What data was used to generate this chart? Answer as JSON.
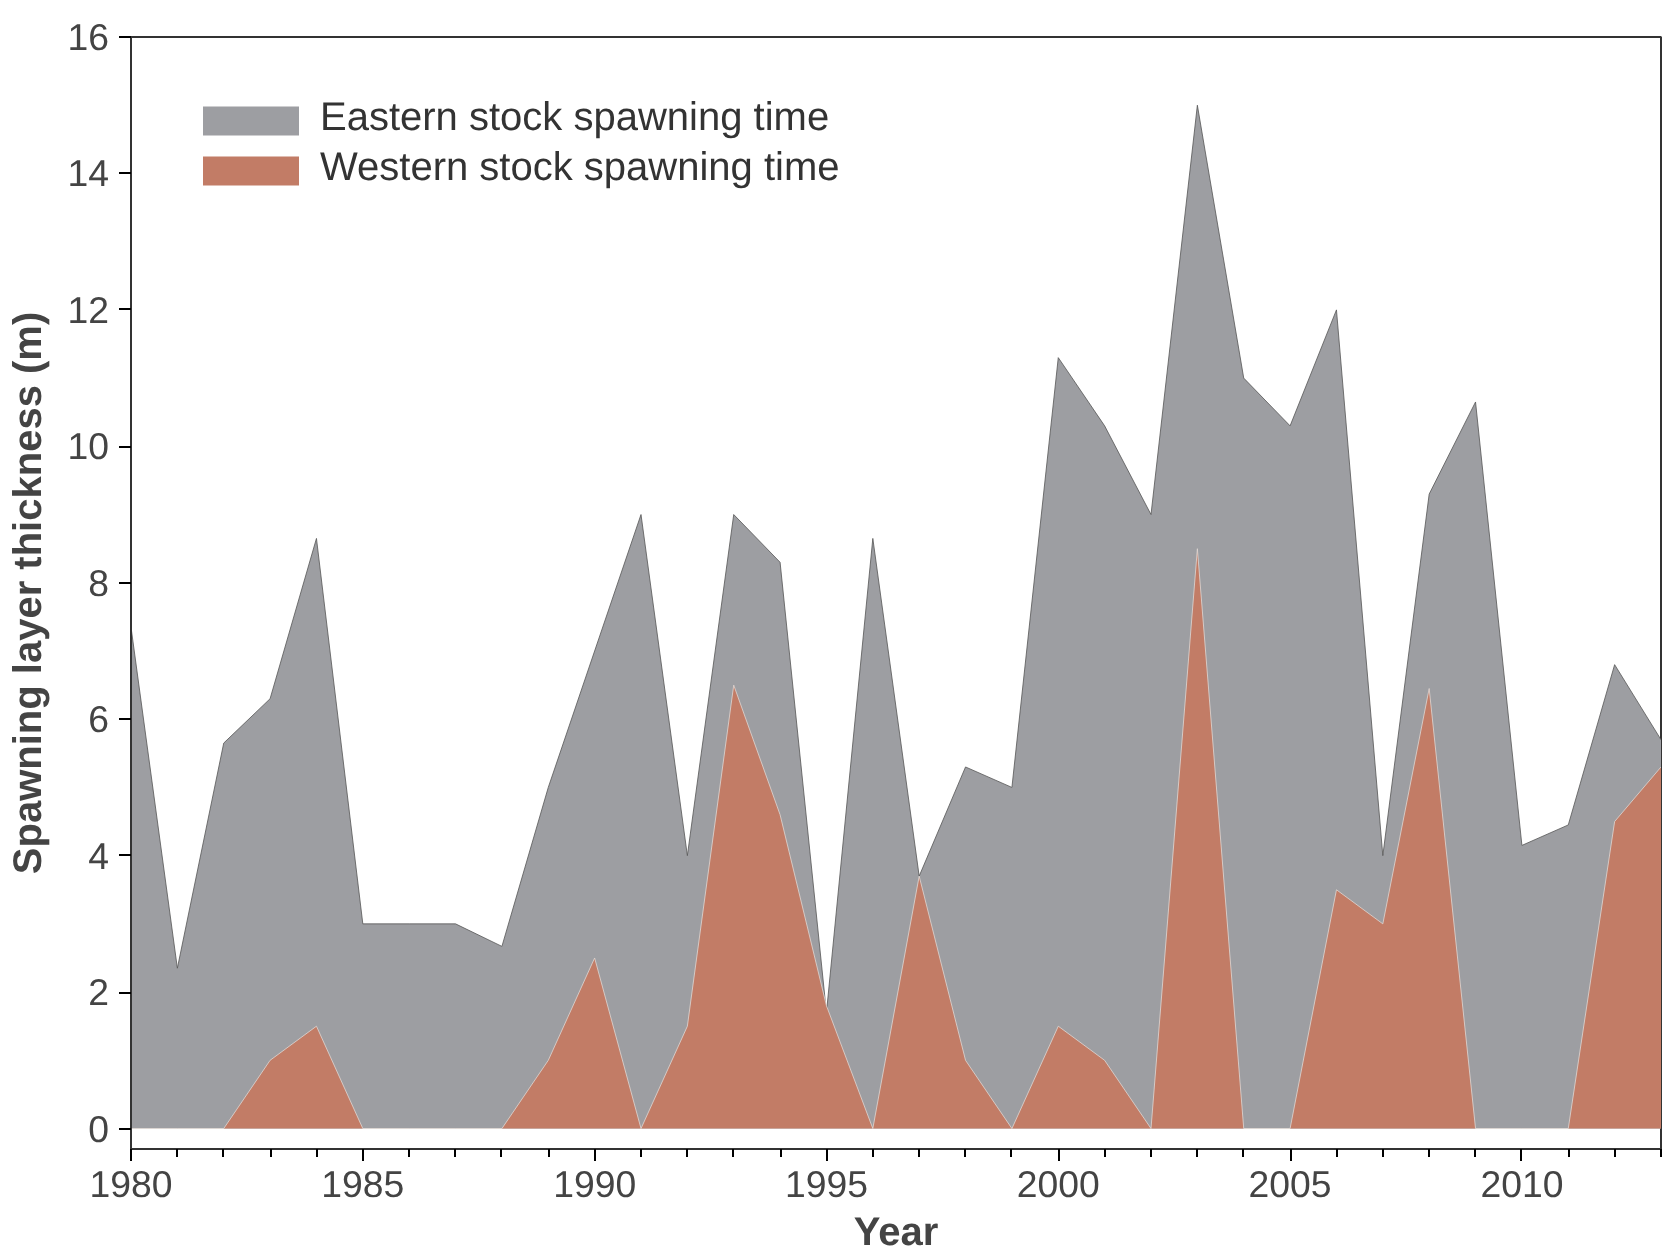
{
  "chart_data": {
    "type": "area",
    "xlabel": "Year",
    "ylabel": "Spawning layer thickness (m)",
    "x": [
      1980,
      1981,
      1982,
      1983,
      1984,
      1985,
      1986,
      1987,
      1988,
      1989,
      1990,
      1991,
      1992,
      1993,
      1994,
      1995,
      1996,
      1997,
      1998,
      1999,
      2000,
      2001,
      2002,
      2003,
      2004,
      2005,
      2006,
      2007,
      2008,
      2009,
      2010,
      2011,
      2012,
      2013
    ],
    "series": [
      {
        "name": "Eastern stock spawning time",
        "color": "#9d9ea2",
        "values": [
          7.35,
          2.35,
          5.65,
          6.3,
          8.65,
          3.0,
          3.0,
          3.0,
          2.67,
          5.0,
          7.0,
          9.0,
          4.0,
          9.0,
          8.3,
          1.7,
          8.65,
          3.7,
          5.3,
          5.0,
          11.3,
          10.3,
          9.0,
          15.0,
          11.0,
          10.3,
          12.0,
          4.0,
          9.3,
          10.65,
          4.15,
          4.45,
          6.8,
          5.7
        ]
      },
      {
        "name": "Western stock spawning time",
        "color": "#c27c66",
        "values": [
          0,
          0,
          0,
          1.0,
          1.5,
          0,
          0,
          0,
          0,
          1.0,
          2.5,
          0,
          1.5,
          6.5,
          4.6,
          1.8,
          0,
          3.7,
          1.0,
          0,
          1.5,
          1.0,
          0,
          8.5,
          0,
          0,
          3.5,
          3.0,
          6.45,
          0,
          0,
          0,
          4.5,
          5.3
        ]
      }
    ],
    "xlim": [
      1980,
      2013
    ],
    "ylim": [
      -0.3,
      16
    ],
    "xticks": [
      1980,
      1985,
      1990,
      1995,
      2000,
      2005,
      2010
    ],
    "yticks": [
      0,
      2,
      4,
      6,
      8,
      10,
      12,
      14,
      16
    ],
    "legend": "top left",
    "grid": false
  }
}
